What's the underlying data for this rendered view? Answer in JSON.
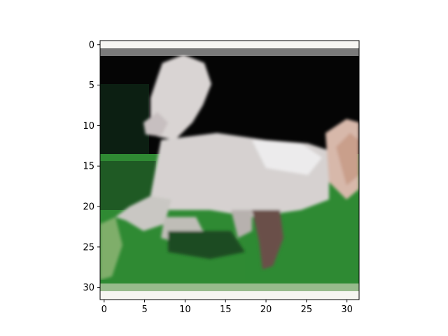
{
  "figure": {
    "description_of_content": "",
    "image_grid": {
      "rows": 32,
      "cols": 32
    },
    "axes": {
      "x_ticks": [
        0,
        5,
        10,
        15,
        20,
        25,
        30
      ],
      "y_ticks": [
        0,
        5,
        10,
        15,
        20,
        25,
        30
      ]
    },
    "colors": {
      "frame": "#000000",
      "background_black": "#050505",
      "grass_green": "#2f8a33",
      "horse_white": "#d9d4d3",
      "top_band_gray": "#7a7a7a",
      "bottom_band_green": "#98bb8c"
    }
  }
}
